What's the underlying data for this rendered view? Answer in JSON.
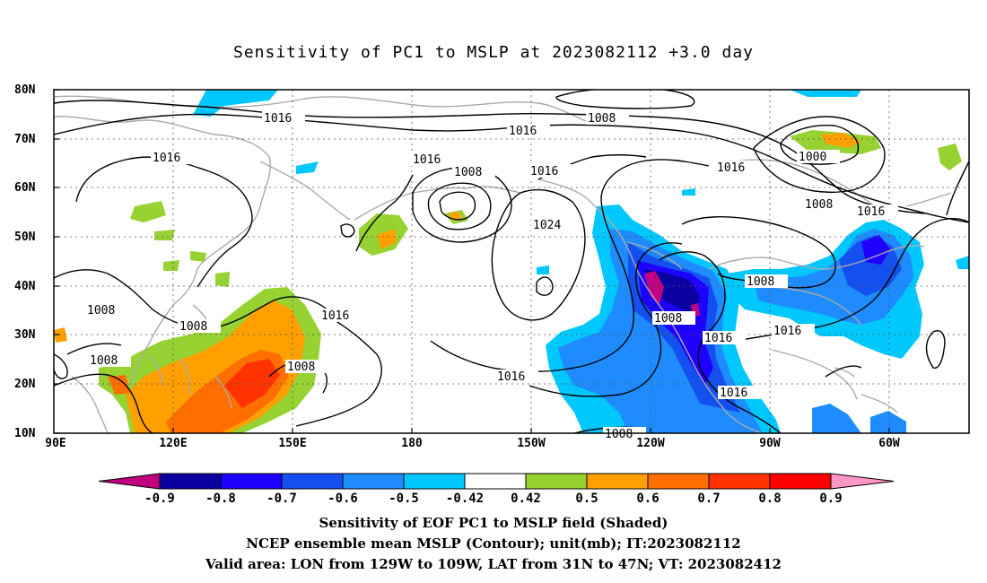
{
  "title": "Sensitivity of PC1 to MSLP at 2023082112 +3.0 day",
  "map": {
    "lat_labels": [
      "80N",
      "70N",
      "60N",
      "50N",
      "40N",
      "30N",
      "20N",
      "10N"
    ],
    "lon_labels": [
      "90E",
      "120E",
      "150E",
      "180",
      "150W",
      "120W",
      "90W",
      "60W"
    ],
    "contour_labels": [
      "1016",
      "1016",
      "1016",
      "1008",
      "1016",
      "1008",
      "1016",
      "1024",
      "1016",
      "1008",
      "1000",
      "1008",
      "1016",
      "1008",
      "1008",
      "1016",
      "1008",
      "1016",
      "1008",
      "1016",
      "1016",
      "1008",
      "1016",
      "1008",
      "1016"
    ]
  },
  "colorbar": {
    "ticks": [
      "-0.9",
      "-0.8",
      "-0.7",
      "-0.6",
      "-0.5",
      "-0.42",
      "0.42",
      "0.5",
      "0.6",
      "0.7",
      "0.8",
      "0.9"
    ],
    "colors": [
      "#c0007f",
      "#0a00a0",
      "#1e00ff",
      "#1450f0",
      "#1e8cff",
      "#00c8ff",
      "#ffffff",
      "#96d232",
      "#ffa000",
      "#ff6e00",
      "#ff3200",
      "#ff0000",
      "#ff96c8"
    ]
  },
  "captions": {
    "line1": "Sensitivity of EOF PC1 to MSLP field (Shaded)",
    "line2": "NCEP ensemble mean MSLP (Contour); unit(mb); IT:2023082112",
    "line3": "Valid area: LON from 129W to 109W, LAT from 31N to 47N; VT: 2023082412"
  }
}
